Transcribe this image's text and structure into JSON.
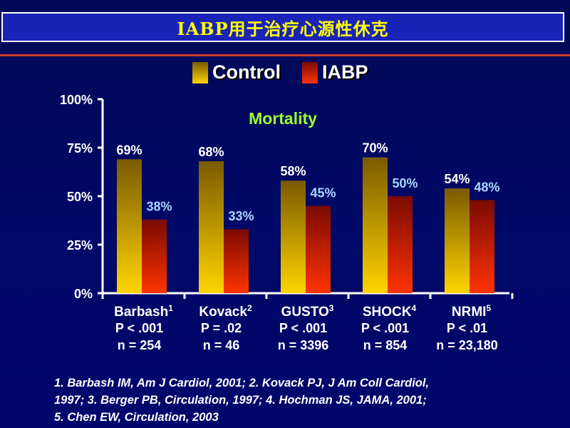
{
  "header": {
    "title": "IABP用于治疗心源性休克"
  },
  "colors": {
    "control_top": "#7a5a00",
    "control_bottom": "#ffd400",
    "iabp_top": "#7a0a00",
    "iabp_bottom": "#ff3300",
    "rule": "#d03a2a",
    "subtitle": "#99ff33",
    "iabp_label": "#aad4ff"
  },
  "footnote": {
    "line1": "1. Barbash IM, Am J Cardiol, 2001; 2. Kovack PJ, J Am Coll Cardiol,",
    "line2": "1997; 3. Berger PB, Circulation, 1997; 4. Hochman JS, JAMA, 2001;",
    "line3": "5. Chen EW, Circulation, 2003"
  },
  "chart_data": {
    "type": "bar",
    "title": "Mortality",
    "ylim": [
      0,
      100
    ],
    "yticks": [
      "0%",
      "25%",
      "50%",
      "75%",
      "100%"
    ],
    "legend_position": "top",
    "categories": [
      {
        "name": "Barbash",
        "sup": "1",
        "p": "P < .001",
        "n": "n = 254"
      },
      {
        "name": "Kovack",
        "sup": "2",
        "p": "P = .02",
        "n": "n = 46"
      },
      {
        "name": "GUSTO",
        "sup": "3",
        "p": "P < .001",
        "n": "n = 3396"
      },
      {
        "name": "SHOCK",
        "sup": "4",
        "p": "P < .001",
        "n": "n = 854"
      },
      {
        "name": "NRMI",
        "sup": "5",
        "p": "P < .01",
        "n": "n = 23,180"
      }
    ],
    "series": [
      {
        "name": "Control",
        "values": [
          69,
          68,
          58,
          70,
          54
        ],
        "labels": [
          "69%",
          "68%",
          "58%",
          "70%",
          "54%"
        ]
      },
      {
        "name": "IABP",
        "values": [
          38,
          33,
          45,
          50,
          48
        ],
        "labels": [
          "38%",
          "33%",
          "45%",
          "50%",
          "48%"
        ]
      }
    ]
  }
}
